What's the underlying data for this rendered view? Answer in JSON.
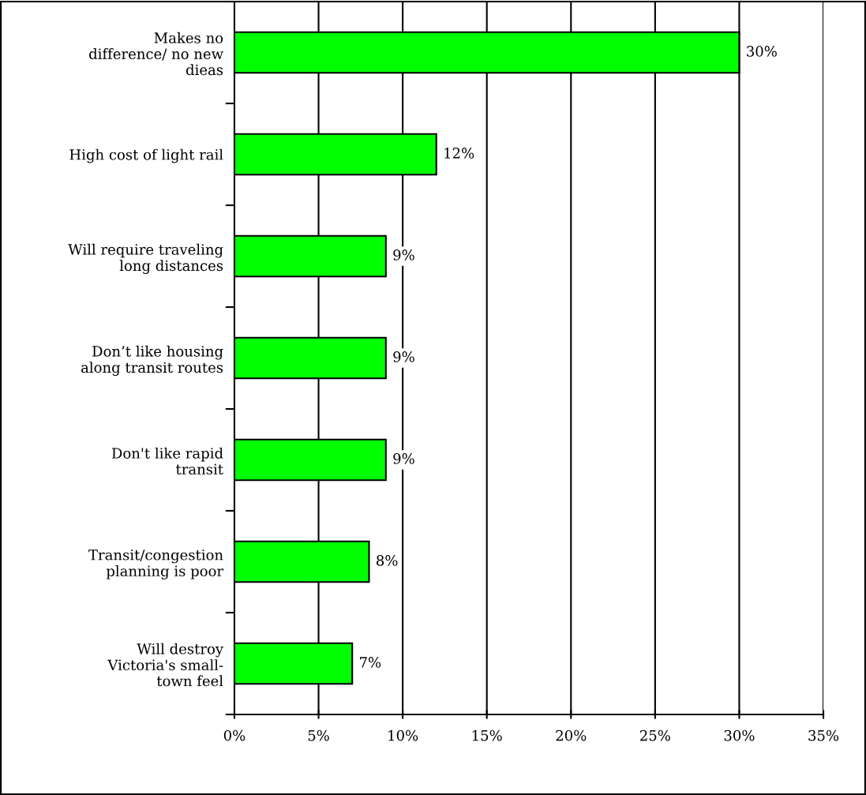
{
  "chart_data": {
    "type": "bar",
    "orientation": "horizontal",
    "categories": [
      "Makes no\ndifference/ no new\ndieas",
      "High cost of light rail",
      "Will require traveling\nlong distances",
      "Don’t like housing\nalong transit routes",
      "Don't like rapid\ntransit",
      "Transit/congestion\nplanning is poor",
      "Will destroy\nVictoria's small-\ntown feel"
    ],
    "values": [
      30,
      12,
      9,
      9,
      9,
      8,
      7
    ],
    "value_labels": [
      "30%",
      "12%",
      "9%",
      "9%",
      "9%",
      "8%",
      "7%"
    ],
    "color": "#00ff00",
    "xlim": [
      0,
      35
    ],
    "xticks": [
      {
        "value": 0,
        "label": "0%"
      },
      {
        "value": 5,
        "label": "5%"
      },
      {
        "value": 10,
        "label": "10%"
      },
      {
        "value": 15,
        "label": "15%"
      },
      {
        "value": 20,
        "label": "20%"
      },
      {
        "value": 25,
        "label": "25%"
      },
      {
        "value": 30,
        "label": "30%"
      },
      {
        "value": 35,
        "label": "35%"
      }
    ],
    "grid": "x",
    "legend": false
  }
}
